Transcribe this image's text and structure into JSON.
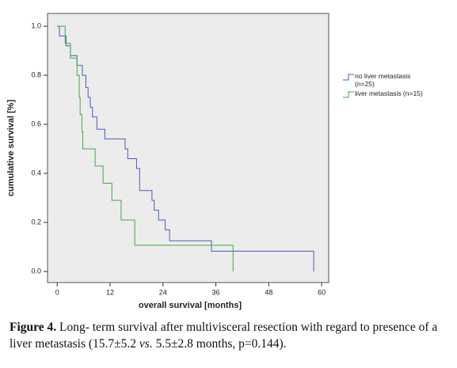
{
  "chart_data": {
    "type": "step",
    "xlabel": "overall survival [months]",
    "ylabel": "cumulative survival [%]",
    "xlim": [
      -2.2,
      61.6
    ],
    "ylim": [
      -0.045,
      1.052
    ],
    "xticks": [
      0,
      12,
      24,
      36,
      48,
      60
    ],
    "yticks": [
      {
        "value": 0,
        "label": "0.0"
      },
      0.2,
      0.4,
      0.6,
      0.8,
      {
        "value": 1,
        "label": "1.0"
      }
    ],
    "series": [
      {
        "name": "no liver metastasis (n=25)",
        "color": "#4a5cb8",
        "x": [
          0,
          0.5,
          2,
          3,
          4.5,
          5.7,
          6.5,
          7,
          7.5,
          8,
          9,
          10.8,
          15.4,
          16,
          18,
          18.7,
          21.5,
          22,
          23,
          24.5,
          25.5,
          35,
          58.2
        ],
        "values": [
          1.0,
          0.96,
          0.92,
          0.88,
          0.84,
          0.8,
          0.75,
          0.71,
          0.67,
          0.63,
          0.58,
          0.54,
          0.5,
          0.46,
          0.42,
          0.33,
          0.29,
          0.25,
          0.21,
          0.17,
          0.125,
          0.083,
          0
        ]
      },
      {
        "name": "liver metastasis (n=15)",
        "color": "#44a844",
        "x": [
          0,
          1.8,
          3,
          4.5,
          5,
          5.2,
          5.6,
          5.8,
          8.6,
          10.4,
          12.4,
          14.5,
          17.6,
          39.9
        ],
        "values": [
          1.0,
          0.93,
          0.87,
          0.8,
          0.71,
          0.64,
          0.57,
          0.5,
          0.43,
          0.36,
          0.29,
          0.21,
          0.107,
          0
        ]
      }
    ]
  },
  "caption": {
    "label": "Figure 4.",
    "text_1": "Long- term survival after multivisceral resection with regard to presence of a liver metastasis (15.7±5.2",
    "emphasis": "vs.",
    "text_2": "5.5±2.8 months, p=0.144)."
  }
}
